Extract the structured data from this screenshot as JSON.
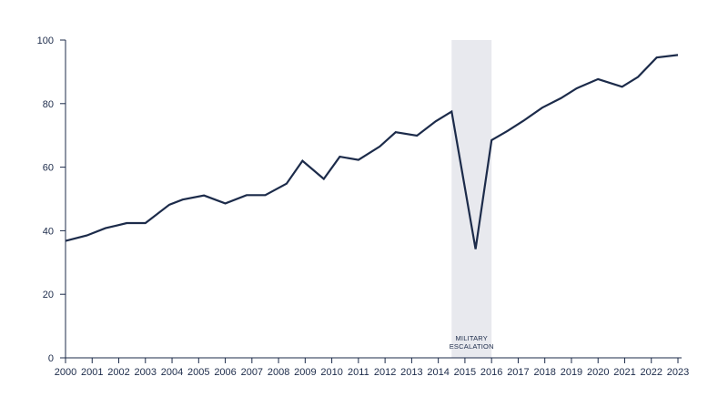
{
  "chart_data": {
    "type": "line",
    "title": "",
    "xlabel": "",
    "ylabel": "",
    "xlim": [
      2000,
      2023
    ],
    "ylim": [
      0,
      100
    ],
    "y_ticks": [
      0,
      20,
      40,
      60,
      80,
      100
    ],
    "x_ticks": [
      2000,
      2001,
      2002,
      2003,
      2004,
      2005,
      2006,
      2007,
      2008,
      2009,
      2010,
      2011,
      2012,
      2013,
      2014,
      2015,
      2016,
      2017,
      2018,
      2019,
      2020,
      2021,
      2022,
      2023
    ],
    "grid": false,
    "legend": "none",
    "line_color": "#1c2b4a",
    "band_color": "#e8e9ee",
    "shaded_band": {
      "x_start": 2014.5,
      "x_end": 2016,
      "label_lines": [
        "MILITARY",
        "ESCALATION"
      ]
    },
    "series": [
      {
        "x": [
          2000,
          2000.8,
          2001.5,
          2002.3,
          2003,
          2003.9,
          2004.4,
          2005.2,
          2006,
          2006.8,
          2007.5,
          2008.3,
          2008.9,
          2009.7,
          2010.3,
          2011,
          2011.8,
          2012.4,
          2013.2,
          2013.9,
          2014.5,
          2015.4,
          2016,
          2016.6,
          2017.2,
          2017.9,
          2018.6,
          2019.2,
          2020,
          2020.9,
          2021.5,
          2022.2,
          2023
        ],
        "values": [
          36.8,
          38.5,
          40.8,
          42.4,
          42.4,
          48.2,
          49.8,
          51.1,
          48.6,
          51.2,
          51.2,
          54.8,
          62.0,
          56.3,
          63.3,
          62.3,
          66.5,
          71.0,
          69.9,
          74.4,
          77.5,
          34.2,
          68.5,
          71.4,
          74.6,
          78.7,
          81.7,
          84.8,
          87.7,
          85.3,
          88.4,
          94.5,
          95.3
        ]
      }
    ]
  }
}
